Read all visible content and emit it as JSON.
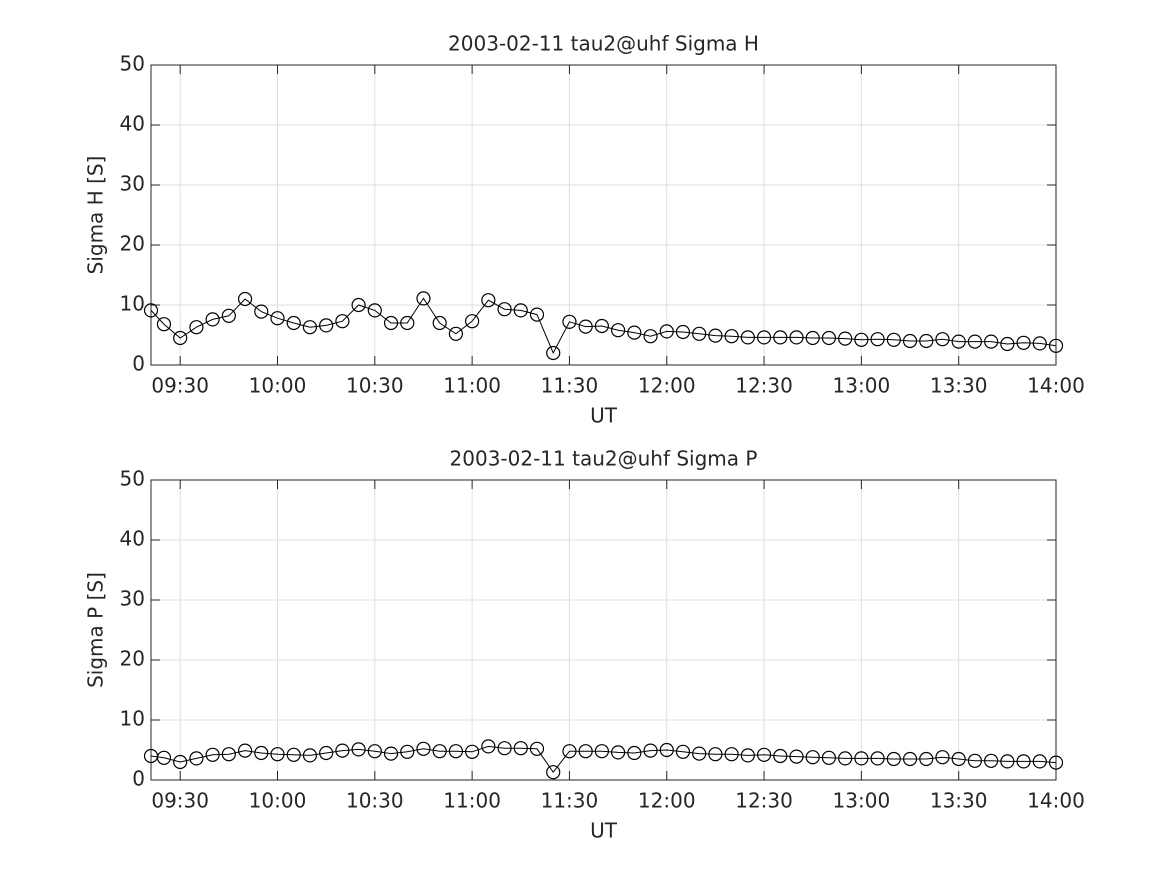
{
  "chart_data": [
    {
      "type": "line",
      "title": "2003-02-11  tau2@uhf Sigma H",
      "xlabel": "UT",
      "ylabel": "Sigma H [S]",
      "x": [
        "09:21",
        "09:25",
        "09:30",
        "09:35",
        "09:40",
        "09:45",
        "09:50",
        "09:55",
        "10:00",
        "10:05",
        "10:10",
        "10:15",
        "10:20",
        "10:25",
        "10:30",
        "10:35",
        "10:40",
        "10:45",
        "10:50",
        "10:55",
        "11:00",
        "11:05",
        "11:10",
        "11:15",
        "11:20",
        "11:25",
        "11:30",
        "11:35",
        "11:40",
        "11:45",
        "11:50",
        "11:55",
        "12:00",
        "12:05",
        "12:10",
        "12:15",
        "12:20",
        "12:25",
        "12:30",
        "12:35",
        "12:40",
        "12:45",
        "12:50",
        "12:55",
        "13:00",
        "13:05",
        "13:10",
        "13:15",
        "13:20",
        "13:25",
        "13:30",
        "13:35",
        "13:40",
        "13:45",
        "13:50",
        "13:55",
        "14:00"
      ],
      "values": [
        9.1,
        6.8,
        4.5,
        6.3,
        7.6,
        8.2,
        11.0,
        8.9,
        7.8,
        7.0,
        6.3,
        6.6,
        7.3,
        10.0,
        9.1,
        7.0,
        7.0,
        11.1,
        7.0,
        5.2,
        7.3,
        10.8,
        9.3,
        9.1,
        8.4,
        2.0,
        7.2,
        6.4,
        6.5,
        5.8,
        5.4,
        4.8,
        5.6,
        5.5,
        5.2,
        4.9,
        4.8,
        4.6,
        4.6,
        4.6,
        4.6,
        4.5,
        4.5,
        4.4,
        4.2,
        4.3,
        4.2,
        4.0,
        4.0,
        4.3,
        3.9,
        3.9,
        3.9,
        3.5,
        3.7,
        3.6,
        3.2
      ],
      "color": "#000000",
      "marker": "circle",
      "xlim": [
        "09:21",
        "14:00"
      ],
      "xticks": [
        "09:30",
        "10:00",
        "10:30",
        "11:00",
        "11:30",
        "12:00",
        "12:30",
        "13:00",
        "13:30",
        "14:00"
      ],
      "ylim": [
        0,
        50
      ],
      "yticks": [
        0,
        10,
        20,
        30,
        40,
        50
      ],
      "grid": true
    },
    {
      "type": "line",
      "title": "2003-02-11  tau2@uhf Sigma P",
      "xlabel": "UT",
      "ylabel": "Sigma P [S]",
      "x": [
        "09:21",
        "09:25",
        "09:30",
        "09:35",
        "09:40",
        "09:45",
        "09:50",
        "09:55",
        "10:00",
        "10:05",
        "10:10",
        "10:15",
        "10:20",
        "10:25",
        "10:30",
        "10:35",
        "10:40",
        "10:45",
        "10:50",
        "10:55",
        "11:00",
        "11:05",
        "11:10",
        "11:15",
        "11:20",
        "11:25",
        "11:30",
        "11:35",
        "11:40",
        "11:45",
        "11:50",
        "11:55",
        "12:00",
        "12:05",
        "12:10",
        "12:15",
        "12:20",
        "12:25",
        "12:30",
        "12:35",
        "12:40",
        "12:45",
        "12:50",
        "12:55",
        "13:00",
        "13:05",
        "13:10",
        "13:15",
        "13:20",
        "13:25",
        "13:30",
        "13:35",
        "13:40",
        "13:45",
        "13:50",
        "13:55",
        "14:00"
      ],
      "values": [
        4.0,
        3.7,
        3.0,
        3.6,
        4.2,
        4.3,
        4.9,
        4.5,
        4.3,
        4.2,
        4.1,
        4.5,
        4.9,
        5.1,
        4.8,
        4.4,
        4.7,
        5.2,
        4.8,
        4.8,
        4.7,
        5.6,
        5.3,
        5.3,
        5.2,
        1.3,
        4.8,
        4.8,
        4.8,
        4.6,
        4.5,
        4.9,
        5.0,
        4.7,
        4.4,
        4.3,
        4.3,
        4.1,
        4.2,
        4.0,
        3.9,
        3.8,
        3.7,
        3.6,
        3.6,
        3.6,
        3.5,
        3.5,
        3.5,
        3.8,
        3.5,
        3.2,
        3.2,
        3.1,
        3.1,
        3.1,
        2.9
      ],
      "color": "#000000",
      "marker": "circle",
      "xlim": [
        "09:21",
        "14:00"
      ],
      "xticks": [
        "09:30",
        "10:00",
        "10:30",
        "11:00",
        "11:30",
        "12:00",
        "12:30",
        "13:00",
        "13:30",
        "14:00"
      ],
      "ylim": [
        0,
        50
      ],
      "yticks": [
        0,
        10,
        20,
        30,
        40,
        50
      ],
      "grid": true
    }
  ]
}
